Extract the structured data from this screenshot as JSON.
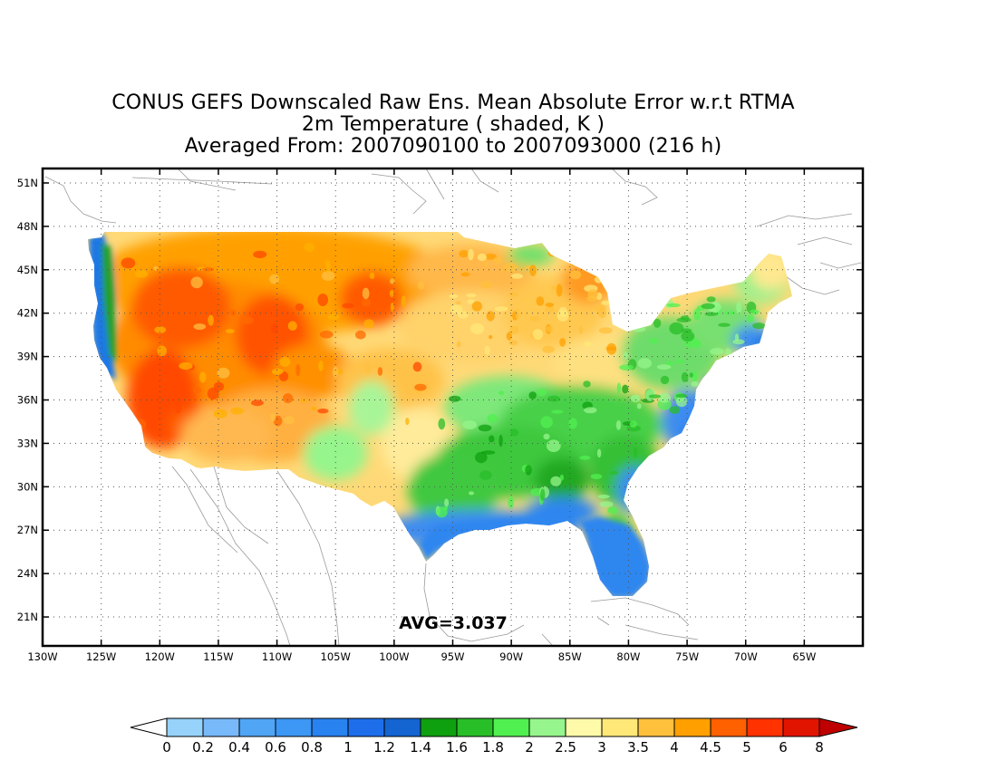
{
  "title": {
    "line1": "CONUS GEFS Downscaled Raw Ens. Mean Absolute Error w.r.t RTMA",
    "line2": "2m Temperature ( shaded, K )",
    "line3": "Averaged From: 2007090100 to 2007093000 (216 h)"
  },
  "map": {
    "region": "CONUS",
    "lon_range": [
      -130,
      -60
    ],
    "lat_range": [
      19,
      52
    ],
    "lat_ticks": [
      {
        "value": 51,
        "label": "51N"
      },
      {
        "value": 48,
        "label": "48N"
      },
      {
        "value": 45,
        "label": "45N"
      },
      {
        "value": 42,
        "label": "42N"
      },
      {
        "value": 39,
        "label": "39N"
      },
      {
        "value": 36,
        "label": "36N"
      },
      {
        "value": 33,
        "label": "33N"
      },
      {
        "value": 30,
        "label": "30N"
      },
      {
        "value": 27,
        "label": "27N"
      },
      {
        "value": 24,
        "label": "24N"
      },
      {
        "value": 21,
        "label": "21N"
      }
    ],
    "lon_ticks": [
      {
        "value": -130,
        "label": "130W"
      },
      {
        "value": -125,
        "label": "125W"
      },
      {
        "value": -120,
        "label": "120W"
      },
      {
        "value": -115,
        "label": "115W"
      },
      {
        "value": -110,
        "label": "110W"
      },
      {
        "value": -105,
        "label": "105W"
      },
      {
        "value": -100,
        "label": "100W"
      },
      {
        "value": -95,
        "label": "95W"
      },
      {
        "value": -90,
        "label": "90W"
      },
      {
        "value": -85,
        "label": "85W"
      },
      {
        "value": -80,
        "label": "80W"
      },
      {
        "value": -75,
        "label": "75W"
      },
      {
        "value": -70,
        "label": "70W"
      },
      {
        "value": -65,
        "label": "65W"
      }
    ],
    "grid": true,
    "avg_label": "AVG=3.037"
  },
  "colorbar": {
    "colors": [
      "#96d2fa",
      "#78b9fa",
      "#50a5f5",
      "#3c97f5",
      "#2882f0",
      "#1e6eeb",
      "#1464d2",
      "#0fa00f",
      "#28be28",
      "#50f050",
      "#96f58c",
      "#fffaaa",
      "#ffe878",
      "#ffc03c",
      "#ffa000",
      "#ff6000",
      "#ff3200",
      "#e11400",
      "#c00000"
    ],
    "labels": [
      "0",
      "0.2",
      "0.4",
      "0.6",
      "0.8",
      "1",
      "1.2",
      "1.4",
      "1.6",
      "1.8",
      "2",
      "2.5",
      "3",
      "3.5",
      "4",
      "4.5",
      "5",
      "6",
      "8"
    ]
  }
}
